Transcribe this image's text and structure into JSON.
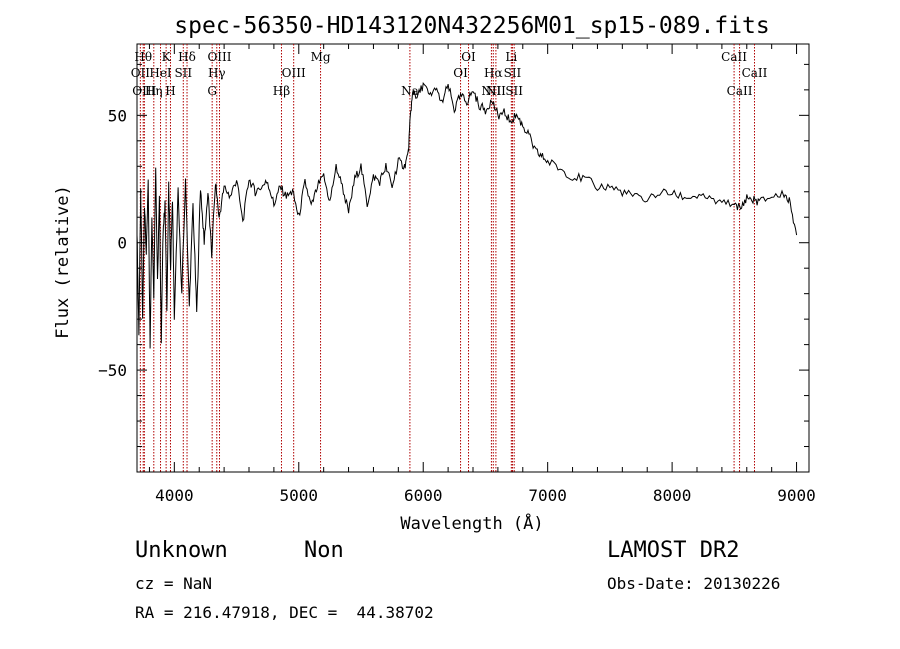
{
  "chart_data": {
    "type": "line",
    "title": "spec-56350-HD143120N432256M01_sp15-089.fits",
    "xlabel": "Wavelength (Å)",
    "ylabel": "Flux (relative)",
    "xlim": [
      3700,
      9100
    ],
    "ylim": [
      -90,
      78
    ],
    "xticks": [
      4000,
      5000,
      6000,
      7000,
      8000,
      9000
    ],
    "xtick_labels": [
      "4000",
      "5000",
      "6000",
      "7000",
      "8000",
      "9000"
    ],
    "yticks": [
      -50,
      0,
      50
    ],
    "ytick_labels": [
      "−50",
      "0",
      "50"
    ],
    "series": [
      {
        "name": "flux",
        "x": [
          3700,
          3715,
          3730,
          3745,
          3760,
          3775,
          3790,
          3805,
          3820,
          3835,
          3850,
          3865,
          3880,
          3895,
          3910,
          3925,
          3940,
          3955,
          3970,
          3985,
          4000,
          4030,
          4060,
          4090,
          4120,
          4150,
          4180,
          4210,
          4240,
          4270,
          4300,
          4330,
          4360,
          4400,
          4450,
          4500,
          4550,
          4600,
          4650,
          4700,
          4750,
          4800,
          4850,
          4900,
          4950,
          5000,
          5050,
          5100,
          5150,
          5200,
          5250,
          5300,
          5350,
          5400,
          5450,
          5500,
          5550,
          5600,
          5650,
          5700,
          5750,
          5800,
          5850,
          5880,
          5900,
          5920,
          5950,
          6000,
          6050,
          6100,
          6150,
          6200,
          6250,
          6300,
          6350,
          6400,
          6450,
          6500,
          6550,
          6600,
          6650,
          6700,
          6750,
          6800,
          6850,
          6900,
          6950,
          7000,
          7100,
          7200,
          7300,
          7400,
          7500,
          7600,
          7700,
          7800,
          7900,
          8000,
          8100,
          8200,
          8300,
          8400,
          8500,
          8550,
          8600,
          8650,
          8700,
          8800,
          8900,
          8950,
          9000
        ],
        "values": [
          5,
          -35,
          20,
          -30,
          15,
          -5,
          25,
          -40,
          10,
          -20,
          30,
          -15,
          20,
          -38,
          5,
          15,
          -25,
          22,
          -10,
          18,
          -30,
          20,
          -20,
          25,
          -25,
          15,
          -28,
          22,
          0,
          20,
          -5,
          24,
          10,
          22,
          18,
          25,
          8,
          25,
          20,
          22,
          24,
          15,
          22,
          18,
          20,
          10,
          24,
          14,
          22,
          26,
          16,
          30,
          22,
          12,
          25,
          30,
          15,
          26,
          24,
          30,
          22,
          32,
          30,
          35,
          52,
          60,
          57,
          62,
          58,
          60,
          55,
          62,
          52,
          58,
          55,
          60,
          54,
          52,
          56,
          50,
          51,
          48,
          50,
          46,
          42,
          36,
          34,
          32,
          29,
          26,
          25,
          22,
          22,
          20,
          18,
          17,
          20,
          19,
          18,
          18,
          17,
          15,
          16,
          13,
          18,
          17,
          16,
          18,
          19,
          16,
          3
        ]
      }
    ],
    "lines": [
      {
        "name": "OII",
        "wavelength": 3727,
        "row": 2
      },
      {
        "name": "Hθ",
        "wavelength": 3750,
        "row": 1
      },
      {
        "name": "OIII",
        "wavelength": 3759,
        "row": 3
      },
      {
        "name": "Hη",
        "wavelength": 3835,
        "row": 3
      },
      {
        "name": "HeI",
        "wavelength": 3889,
        "row": 2
      },
      {
        "name": "K",
        "wavelength": 3934,
        "row": 1
      },
      {
        "name": "H",
        "wavelength": 3969,
        "row": 3
      },
      {
        "name": "SII",
        "wavelength": 4072,
        "row": 2
      },
      {
        "name": "Hδ",
        "wavelength": 4102,
        "row": 1
      },
      {
        "name": "G",
        "wavelength": 4304,
        "row": 3
      },
      {
        "name": "Hγ",
        "wavelength": 4341,
        "row": 2
      },
      {
        "name": "OIII",
        "wavelength": 4363,
        "row": 1
      },
      {
        "name": "Hβ",
        "wavelength": 4861,
        "row": 3
      },
      {
        "name": "OIII",
        "wavelength": 4959,
        "row": 2
      },
      {
        "name": "Mg",
        "wavelength": 5175,
        "row": 1
      },
      {
        "name": "Na",
        "wavelength": 5893,
        "row": 3
      },
      {
        "name": "OI",
        "wavelength": 6300,
        "row": 2
      },
      {
        "name": "OI",
        "wavelength": 6364,
        "row": 1
      },
      {
        "name": "NII",
        "wavelength": 6548,
        "row": 3
      },
      {
        "name": "Hα",
        "wavelength": 6563,
        "row": 2
      },
      {
        "name": "NII",
        "wavelength": 6584,
        "row": 3
      },
      {
        "name": "Li",
        "wavelength": 6708,
        "row": 1
      },
      {
        "name": "SII",
        "wavelength": 6717,
        "row": 2
      },
      {
        "name": "SII",
        "wavelength": 6731,
        "row": 3
      },
      {
        "name": "CaII",
        "wavelength": 8498,
        "row": 1
      },
      {
        "name": "CaII",
        "wavelength": 8542,
        "row": 3
      },
      {
        "name": "CaII",
        "wavelength": 8662,
        "row": 2
      }
    ]
  },
  "info": {
    "class": "Unknown",
    "subclass": "Non",
    "cz": "cz = NaN",
    "coords": "RA = 216.47918, DEC =  44.38702",
    "survey": "LAMOST DR2",
    "obs_date": "Obs-Date: 20130226"
  }
}
